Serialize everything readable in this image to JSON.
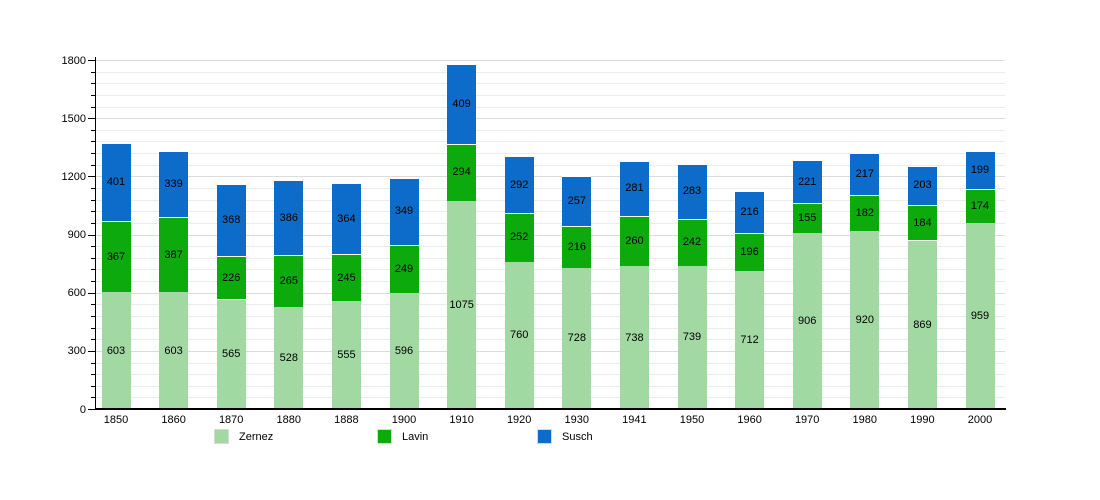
{
  "chart_data": {
    "type": "bar",
    "stacked": true,
    "title": "",
    "categories": [
      "1850",
      "1860",
      "1870",
      "1880",
      "1888",
      "1900",
      "1910",
      "1920",
      "1930",
      "1941",
      "1950",
      "1960",
      "1970",
      "1980",
      "1990",
      "2000"
    ],
    "series": [
      {
        "name": "Zernez",
        "color": "#a2d9a2",
        "values": [
          603,
          603,
          565,
          528,
          555,
          596,
          1075,
          760,
          728,
          738,
          739,
          712,
          906,
          920,
          869,
          959
        ]
      },
      {
        "name": "Lavin",
        "color": "#0caa0c",
        "values": [
          367,
          387,
          226,
          265,
          245,
          249,
          294,
          252,
          216,
          260,
          242,
          196,
          155,
          182,
          184,
          174
        ]
      },
      {
        "name": "Susch",
        "color": "#0d6cc9",
        "values": [
          401,
          339,
          368,
          386,
          364,
          349,
          409,
          292,
          257,
          281,
          283,
          216,
          221,
          217,
          203,
          199
        ]
      }
    ],
    "ylim": [
      0,
      1800
    ],
    "yticks": [
      "0",
      "300",
      "600",
      "900",
      "1200",
      "1500",
      "1800"
    ],
    "minor_step": 60,
    "grid": true,
    "show_value_labels": true,
    "legend_position": "bottom",
    "legend": [
      {
        "label": "Zernez",
        "color": "#a2d9a2"
      },
      {
        "label": "Lavin",
        "color": "#0caa0c"
      },
      {
        "label": "Susch",
        "color": "#0d6cc9"
      }
    ]
  }
}
